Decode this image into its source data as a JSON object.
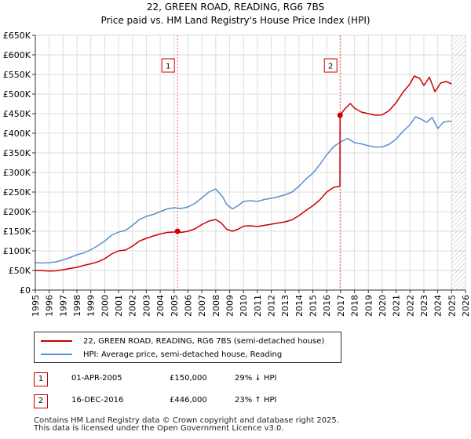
{
  "title_line1": "22, GREEN ROAD, READING, RG6 7BS",
  "title_line2": "Price paid vs. HM Land Registry's House Price Index (HPI)",
  "colors": {
    "property": "#cc0000",
    "hpi": "#5b8fcf",
    "grid": "#dddddd",
    "plot_bg": "#ffffff"
  },
  "chart_data": {
    "type": "line",
    "ylim": [
      0,
      650000
    ],
    "xlim": [
      1995,
      2026
    ],
    "y_ticks": [
      0,
      50000,
      100000,
      150000,
      200000,
      250000,
      300000,
      350000,
      400000,
      450000,
      500000,
      550000,
      600000,
      650000
    ],
    "y_tick_labels": [
      "£0",
      "£50K",
      "£100K",
      "£150K",
      "£200K",
      "£250K",
      "£300K",
      "£350K",
      "£400K",
      "£450K",
      "£500K",
      "£550K",
      "£600K",
      "£650K"
    ],
    "x_tick_labels": [
      "1995",
      "1996",
      "1997",
      "1998",
      "1999",
      "2000",
      "2001",
      "2002",
      "2003",
      "2004",
      "2005",
      "2006",
      "2007",
      "2008",
      "2009",
      "2010",
      "2011",
      "2012",
      "2013",
      "2014",
      "2015",
      "2016",
      "2017",
      "2018",
      "2019",
      "2020",
      "2021",
      "2022",
      "2023",
      "2024",
      "2025",
      "2026"
    ],
    "hatch_from": 2025.0,
    "series": [
      {
        "name": "22, GREEN ROAD, READING, RG6 7BS (semi-detached house)",
        "color": "#cc0000",
        "points": [
          [
            1995.0,
            50000
          ],
          [
            1995.5,
            49500
          ],
          [
            1996.0,
            48500
          ],
          [
            1996.5,
            49000
          ],
          [
            1997.0,
            52000
          ],
          [
            1997.5,
            55000
          ],
          [
            1998.0,
            58000
          ],
          [
            1998.5,
            63000
          ],
          [
            1999.0,
            67000
          ],
          [
            1999.5,
            72000
          ],
          [
            2000.0,
            80000
          ],
          [
            2000.5,
            92000
          ],
          [
            2001.0,
            100000
          ],
          [
            2001.5,
            102000
          ],
          [
            2002.0,
            112000
          ],
          [
            2002.5,
            125000
          ],
          [
            2003.0,
            132000
          ],
          [
            2003.5,
            138000
          ],
          [
            2004.0,
            143000
          ],
          [
            2004.5,
            147000
          ],
          [
            2005.0,
            148000
          ],
          [
            2005.25,
            150000
          ],
          [
            2005.5,
            147000
          ],
          [
            2006.0,
            150000
          ],
          [
            2006.5,
            156000
          ],
          [
            2007.0,
            167000
          ],
          [
            2007.5,
            176000
          ],
          [
            2008.0,
            180000
          ],
          [
            2008.4,
            171000
          ],
          [
            2008.8,
            155000
          ],
          [
            2009.2,
            150000
          ],
          [
            2009.6,
            155000
          ],
          [
            2010.0,
            163000
          ],
          [
            2010.5,
            164000
          ],
          [
            2011.0,
            162000
          ],
          [
            2011.5,
            165000
          ],
          [
            2012.0,
            168000
          ],
          [
            2012.5,
            171000
          ],
          [
            2013.0,
            174000
          ],
          [
            2013.5,
            179000
          ],
          [
            2014.0,
            190000
          ],
          [
            2014.5,
            203000
          ],
          [
            2015.0,
            215000
          ],
          [
            2015.5,
            230000
          ],
          [
            2016.0,
            250000
          ],
          [
            2016.5,
            262000
          ],
          [
            2016.95,
            265000
          ],
          [
            2016.96,
            446000
          ],
          [
            2017.3,
            462000
          ],
          [
            2017.7,
            476000
          ],
          [
            2018.0,
            464000
          ],
          [
            2018.5,
            454000
          ],
          [
            2019.0,
            450000
          ],
          [
            2019.5,
            446000
          ],
          [
            2020.0,
            447000
          ],
          [
            2020.5,
            458000
          ],
          [
            2021.0,
            478000
          ],
          [
            2021.5,
            505000
          ],
          [
            2022.0,
            526000
          ],
          [
            2022.3,
            546000
          ],
          [
            2022.7,
            540000
          ],
          [
            2023.0,
            522000
          ],
          [
            2023.4,
            543000
          ],
          [
            2023.8,
            506000
          ],
          [
            2024.2,
            528000
          ],
          [
            2024.6,
            532000
          ],
          [
            2025.0,
            526000
          ]
        ]
      },
      {
        "name": "HPI: Average price, semi-detached house, Reading",
        "color": "#5b8fcf",
        "points": [
          [
            1995.0,
            70000
          ],
          [
            1995.5,
            69000
          ],
          [
            1996.0,
            70000
          ],
          [
            1996.5,
            72000
          ],
          [
            1997.0,
            77000
          ],
          [
            1997.5,
            83000
          ],
          [
            1998.0,
            90000
          ],
          [
            1998.5,
            95000
          ],
          [
            1999.0,
            103000
          ],
          [
            1999.5,
            113000
          ],
          [
            2000.0,
            125000
          ],
          [
            2000.5,
            140000
          ],
          [
            2001.0,
            148000
          ],
          [
            2001.5,
            152000
          ],
          [
            2002.0,
            165000
          ],
          [
            2002.5,
            180000
          ],
          [
            2003.0,
            188000
          ],
          [
            2003.5,
            193000
          ],
          [
            2004.0,
            200000
          ],
          [
            2004.5,
            207000
          ],
          [
            2005.0,
            210000
          ],
          [
            2005.5,
            208000
          ],
          [
            2006.0,
            212000
          ],
          [
            2006.5,
            221000
          ],
          [
            2007.0,
            235000
          ],
          [
            2007.5,
            250000
          ],
          [
            2008.0,
            258000
          ],
          [
            2008.5,
            238000
          ],
          [
            2008.8,
            218000
          ],
          [
            2009.2,
            207000
          ],
          [
            2009.6,
            215000
          ],
          [
            2010.0,
            226000
          ],
          [
            2010.5,
            228000
          ],
          [
            2011.0,
            226000
          ],
          [
            2011.5,
            231000
          ],
          [
            2012.0,
            234000
          ],
          [
            2012.5,
            238000
          ],
          [
            2013.0,
            243000
          ],
          [
            2013.5,
            250000
          ],
          [
            2014.0,
            265000
          ],
          [
            2014.5,
            283000
          ],
          [
            2015.0,
            298000
          ],
          [
            2015.5,
            320000
          ],
          [
            2016.0,
            345000
          ],
          [
            2016.5,
            366000
          ],
          [
            2017.0,
            378000
          ],
          [
            2017.5,
            387000
          ],
          [
            2018.0,
            376000
          ],
          [
            2018.5,
            373000
          ],
          [
            2019.0,
            368000
          ],
          [
            2019.5,
            365000
          ],
          [
            2020.0,
            365000
          ],
          [
            2020.5,
            372000
          ],
          [
            2021.0,
            385000
          ],
          [
            2021.5,
            405000
          ],
          [
            2022.0,
            422000
          ],
          [
            2022.4,
            442000
          ],
          [
            2022.8,
            436000
          ],
          [
            2023.2,
            428000
          ],
          [
            2023.6,
            440000
          ],
          [
            2024.0,
            412000
          ],
          [
            2024.4,
            428000
          ],
          [
            2024.8,
            431000
          ],
          [
            2025.0,
            430000
          ]
        ]
      }
    ],
    "markers": [
      {
        "label": "1",
        "x": 2005.25,
        "value": 150000
      },
      {
        "label": "2",
        "x": 2016.96,
        "value": 446000
      }
    ]
  },
  "legend": {
    "property_label": "22, GREEN ROAD, READING, RG6 7BS (semi-detached house)",
    "hpi_label": "HPI: Average price, semi-detached house, Reading"
  },
  "sales": [
    {
      "num": "1",
      "date": "01-APR-2005",
      "price": "£150,000",
      "hpi": "29% ↓ HPI"
    },
    {
      "num": "2",
      "date": "16-DEC-2016",
      "price": "£446,000",
      "hpi": "23% ↑ HPI"
    }
  ],
  "footer": {
    "line1": "Contains HM Land Registry data © Crown copyright and database right 2025.",
    "line2": "This data is licensed under the Open Government Licence v3.0."
  }
}
